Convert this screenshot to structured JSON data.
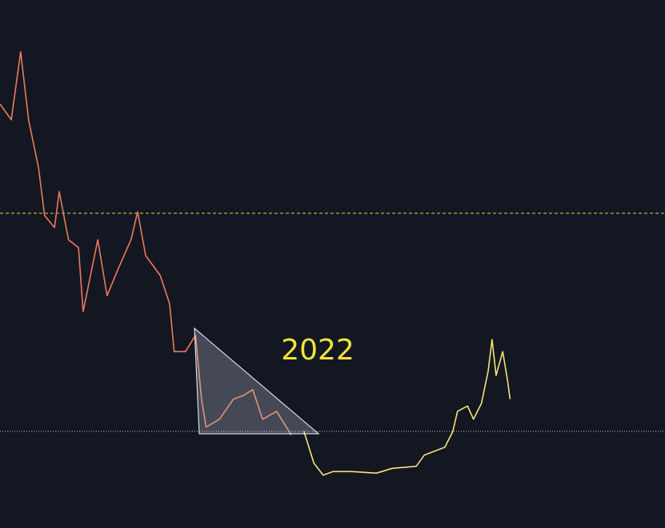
{
  "chart_data": {
    "type": "line",
    "annotation": "2022",
    "annotation_color": "#f5e23a",
    "background": "#131722",
    "xlim": [
      0,
      100
    ],
    "ylim": [
      0,
      100
    ],
    "hlines": [
      {
        "value": 59.6,
        "style": "dashed",
        "color": "#e6d54a"
      },
      {
        "value": 18.3,
        "style": "dotted",
        "color": "#c8c8c8"
      }
    ],
    "series": [
      {
        "color": "#ee7a5a",
        "x": [
          0,
          1.7,
          3.1,
          4.3,
          5.8,
          6.7,
          8.2,
          8.9,
          10.3,
          11.8,
          12.5,
          14.7,
          16.1,
          17.6,
          19.7,
          20.7,
          21.9,
          24.1,
          25.5,
          26.2,
          27.9,
          29.4,
          30.3,
          31.0,
          33.0,
          35.1,
          36.6,
          38.0,
          39.5,
          41.6,
          43.8
        ],
        "values": [
          80.3,
          77.3,
          90.2,
          77.3,
          68.2,
          59.2,
          56.9,
          63.7,
          54.6,
          53.1,
          41.0,
          54.6,
          44.0,
          48.6,
          54.6,
          59.9,
          51.6,
          47.8,
          42.5,
          33.4,
          33.4,
          36.5,
          24.4,
          19.1,
          20.6,
          24.4,
          25.1,
          26.2,
          20.6,
          22.1,
          17.6
        ]
      },
      {
        "color": "#f7e27a",
        "x": [
          45.7,
          47.2,
          48.6,
          50.1,
          52.9,
          56.6,
          59.0,
          62.6,
          63.8,
          66.9,
          68.1,
          68.8,
          70.3,
          71.2,
          72.4,
          73.4,
          74.0,
          74.6,
          75.6,
          76.3,
          76.7
        ],
        "values": [
          18.3,
          12.3,
          10.0,
          10.7,
          10.7,
          10.4,
          11.3,
          11.7,
          13.8,
          15.3,
          18.3,
          22.1,
          23.1,
          20.6,
          23.6,
          29.7,
          35.7,
          28.9,
          33.4,
          28.1,
          24.4
        ]
      }
    ]
  }
}
